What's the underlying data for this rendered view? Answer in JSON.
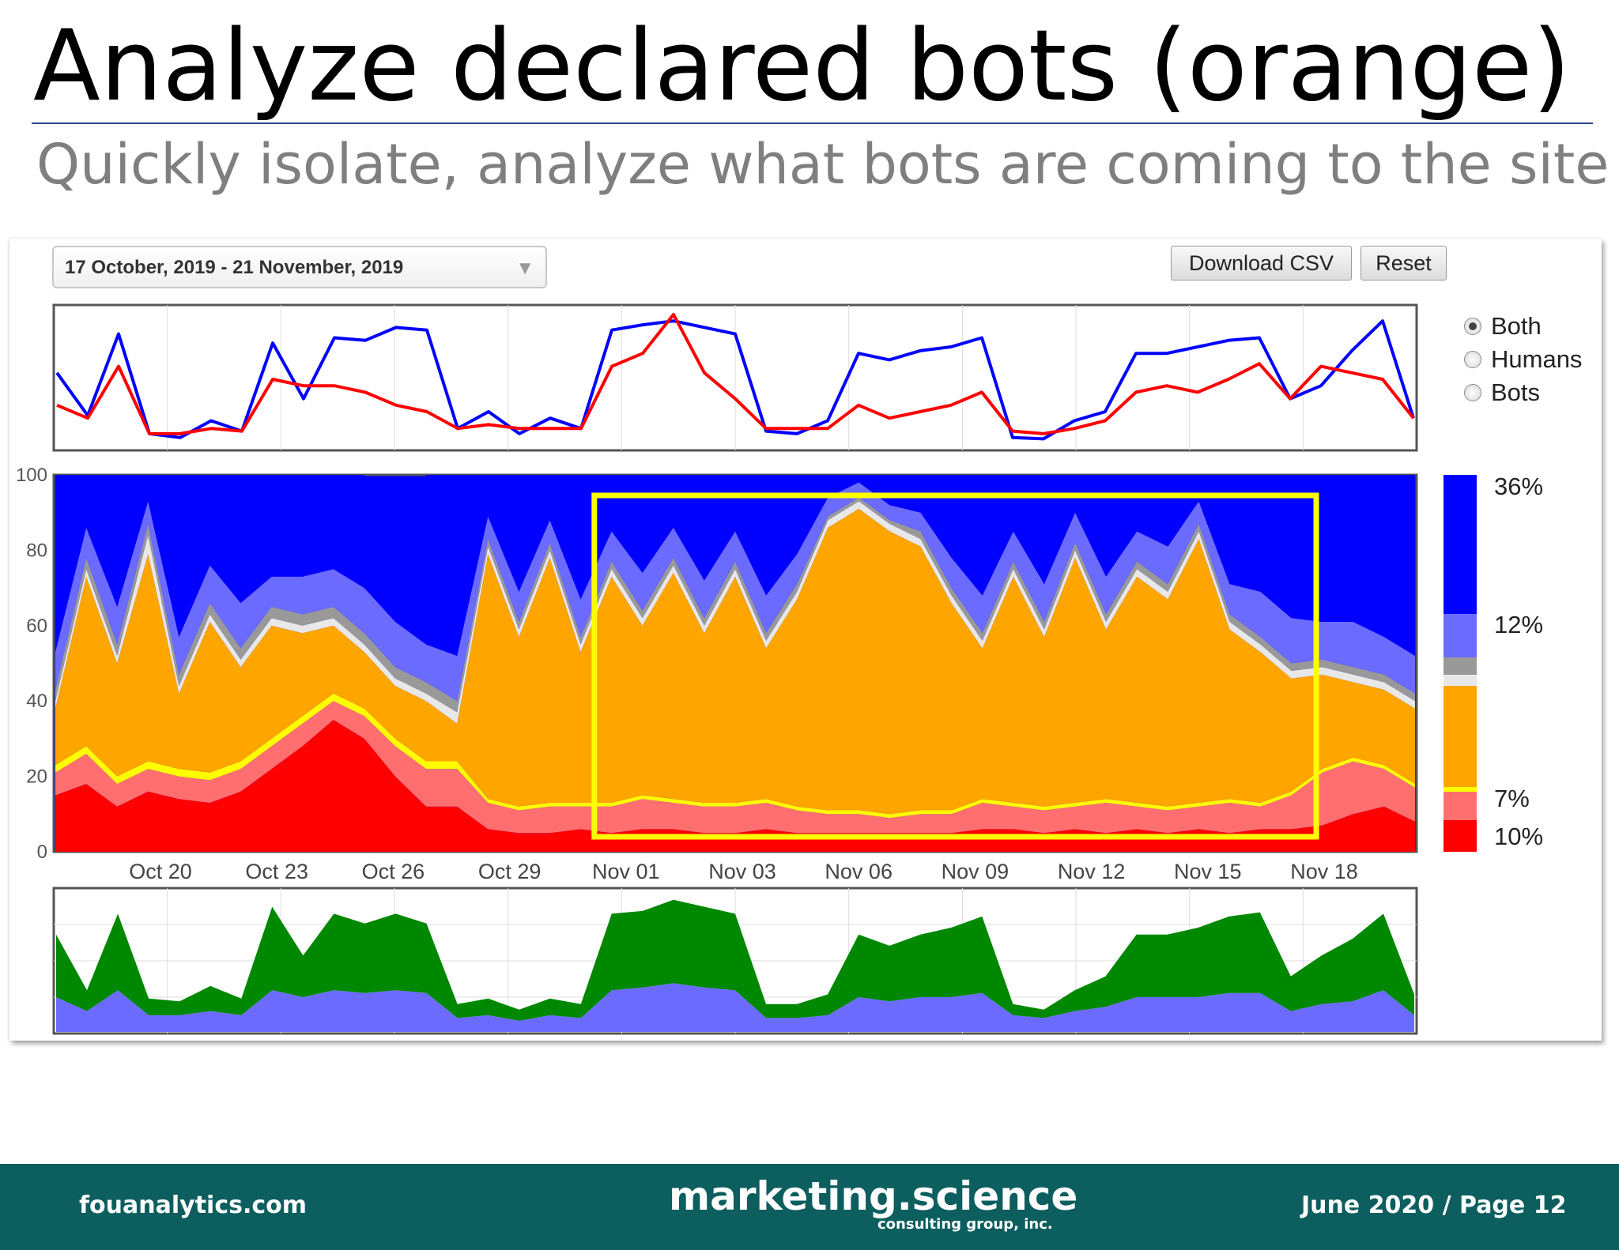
{
  "slide": {
    "title": "Analyze declared bots (orange)",
    "subtitle": "Quickly isolate, analyze what bots are coming to the site"
  },
  "controls": {
    "date_range": "17 October, 2019 - 21 November, 2019",
    "download_label": "Download CSV",
    "reset_label": "Reset",
    "view_options": [
      "Both",
      "Humans",
      "Bots"
    ],
    "selected_view": "Both"
  },
  "chart_data": [
    {
      "type": "line",
      "series": [
        {
          "color": "#0000ff",
          "values": [
            0.55,
            0.22,
            0.85,
            0.08,
            0.05,
            0.18,
            0.1,
            0.78,
            0.35,
            0.82,
            0.8,
            0.9,
            0.88,
            0.12,
            0.25,
            0.08,
            0.2,
            0.12,
            0.88,
            0.92,
            0.95,
            0.9,
            0.85,
            0.1,
            0.08,
            0.18,
            0.7,
            0.65,
            0.72,
            0.75,
            0.82,
            0.05,
            0.04,
            0.18,
            0.25,
            0.7,
            0.7,
            0.75,
            0.8,
            0.82,
            0.35,
            0.45,
            0.72,
            0.95,
            0.2
          ]
        },
        {
          "color": "#ff0000",
          "values": [
            0.3,
            0.2,
            0.6,
            0.08,
            0.08,
            0.12,
            0.1,
            0.5,
            0.45,
            0.45,
            0.4,
            0.3,
            0.25,
            0.12,
            0.15,
            0.12,
            0.12,
            0.12,
            0.6,
            0.7,
            1.0,
            0.55,
            0.35,
            0.12,
            0.12,
            0.12,
            0.3,
            0.2,
            0.25,
            0.3,
            0.4,
            0.1,
            0.08,
            0.12,
            0.18,
            0.4,
            0.45,
            0.4,
            0.5,
            0.62,
            0.35,
            0.6,
            0.55,
            0.5,
            0.2
          ]
        }
      ]
    },
    {
      "type": "area",
      "stacked": true,
      "ylim": [
        0,
        100
      ],
      "yticks": [
        0,
        20,
        40,
        60,
        80,
        100
      ],
      "x_tick_labels": [
        "Oct 20",
        "Oct 23",
        "Oct 26",
        "Oct 29",
        "Nov 01",
        "Nov 03",
        "Nov 06",
        "Nov 09",
        "Nov 12",
        "Nov 15",
        "Nov 18"
      ],
      "series": [
        {
          "color": "#ff0000",
          "values": [
            15,
            18,
            12,
            16,
            14,
            13,
            16,
            22,
            28,
            35,
            30,
            20,
            12,
            12,
            6,
            5,
            5,
            6,
            5,
            6,
            6,
            5,
            5,
            6,
            5,
            5,
            5,
            5,
            5,
            5,
            6,
            6,
            5,
            6,
            5,
            6,
            5,
            6,
            5,
            6,
            6,
            7,
            10,
            12,
            8
          ]
        },
        {
          "color": "#ff6f6f",
          "values": [
            6,
            8,
            6,
            6,
            6,
            6,
            6,
            6,
            6,
            5,
            6,
            8,
            10,
            10,
            7,
            6,
            7,
            6,
            7,
            8,
            7,
            7,
            7,
            7,
            6,
            5,
            5,
            4,
            5,
            5,
            7,
            6,
            6,
            6,
            8,
            6,
            6,
            6,
            8,
            6,
            9,
            14,
            14,
            10,
            9
          ]
        },
        {
          "color": "#ffff00",
          "values": [
            2,
            2,
            2,
            2,
            2,
            2,
            2,
            2,
            2,
            2,
            2,
            2,
            2,
            2,
            1,
            1,
            1,
            1,
            1,
            1,
            1,
            1,
            1,
            1,
            1,
            1,
            1,
            1,
            1,
            1,
            1,
            1,
            1,
            1,
            1,
            1,
            1,
            1,
            1,
            1,
            1,
            1,
            1,
            1,
            1
          ]
        },
        {
          "color": "#ffa500",
          "values": [
            15,
            45,
            30,
            55,
            20,
            40,
            25,
            30,
            22,
            18,
            15,
            14,
            16,
            10,
            65,
            45,
            65,
            40,
            60,
            45,
            60,
            45,
            60,
            40,
            55,
            75,
            80,
            75,
            70,
            55,
            40,
            60,
            45,
            65,
            45,
            60,
            55,
            70,
            45,
            40,
            30,
            25,
            20,
            20,
            20
          ]
        },
        {
          "color": "#e8e8e8",
          "values": [
            2,
            2,
            2,
            5,
            2,
            2,
            2,
            2,
            2,
            2,
            2,
            2,
            2,
            3,
            2,
            2,
            2,
            2,
            2,
            2,
            2,
            2,
            2,
            2,
            2,
            2,
            2,
            2,
            2,
            2,
            2,
            2,
            2,
            2,
            2,
            2,
            2,
            2,
            2,
            2,
            2,
            2,
            2,
            2,
            2
          ]
        },
        {
          "color": "#999999",
          "values": [
            3,
            3,
            3,
            3,
            3,
            3,
            3,
            3,
            3,
            3,
            3,
            3,
            3,
            3,
            2,
            2,
            2,
            2,
            2,
            2,
            2,
            2,
            2,
            2,
            2,
            1,
            1,
            1,
            2,
            2,
            2,
            2,
            2,
            2,
            2,
            2,
            2,
            2,
            2,
            2,
            2,
            2,
            2,
            2,
            2
          ]
        },
        {
          "color": "#6b6bff",
          "values": [
            10,
            8,
            10,
            6,
            10,
            10,
            12,
            8,
            10,
            10,
            12,
            12,
            10,
            12,
            6,
            8,
            6,
            10,
            8,
            10,
            8,
            10,
            8,
            10,
            8,
            5,
            4,
            4,
            5,
            8,
            10,
            8,
            10,
            8,
            10,
            8,
            10,
            6,
            8,
            12,
            12,
            10,
            12,
            10,
            10
          ]
        },
        {
          "color": "#0000ff",
          "values": [
            47,
            14,
            35,
            7,
            43,
            24,
            34,
            27,
            27,
            25,
            30,
            29,
            45,
            48,
            11,
            31,
            12,
            33,
            15,
            26,
            14,
            28,
            17,
            32,
            21,
            6,
            2,
            8,
            10,
            25,
            32,
            15,
            29,
            10,
            27,
            15,
            19,
            7,
            29,
            32,
            38,
            39,
            39,
            43,
            48
          ]
        }
      ],
      "highlight_box": {
        "color": "#ffff00",
        "from": "Nov 01",
        "to": "Nov 18"
      }
    },
    {
      "type": "area",
      "stacked": true,
      "series": [
        {
          "color": "#6b6bff",
          "values": [
            0.25,
            0.15,
            0.3,
            0.12,
            0.12,
            0.15,
            0.12,
            0.3,
            0.25,
            0.3,
            0.28,
            0.3,
            0.28,
            0.1,
            0.12,
            0.08,
            0.12,
            0.1,
            0.3,
            0.32,
            0.35,
            0.32,
            0.3,
            0.1,
            0.1,
            0.12,
            0.25,
            0.22,
            0.25,
            0.25,
            0.28,
            0.12,
            0.1,
            0.15,
            0.18,
            0.25,
            0.25,
            0.25,
            0.28,
            0.28,
            0.15,
            0.2,
            0.22,
            0.3,
            0.12
          ]
        },
        {
          "color": "#008800",
          "values": [
            0.45,
            0.15,
            0.55,
            0.12,
            0.1,
            0.18,
            0.12,
            0.6,
            0.3,
            0.55,
            0.5,
            0.55,
            0.5,
            0.1,
            0.12,
            0.08,
            0.12,
            0.1,
            0.55,
            0.55,
            0.6,
            0.58,
            0.55,
            0.1,
            0.1,
            0.15,
            0.45,
            0.4,
            0.45,
            0.5,
            0.55,
            0.08,
            0.06,
            0.15,
            0.22,
            0.45,
            0.45,
            0.5,
            0.55,
            0.58,
            0.25,
            0.35,
            0.45,
            0.55,
            0.15
          ]
        }
      ]
    }
  ],
  "legend": {
    "colors": [
      "#0000ff",
      "#6b6bff",
      "#999999",
      "#e8e8e8",
      "#ffa500",
      "#ffff00",
      "#ff6f6f",
      "#ff0000"
    ],
    "labels": [
      "36%",
      "12%",
      "7%",
      "10%"
    ]
  },
  "footer": {
    "left": "fouanalytics.com",
    "logo": "marketing.science",
    "logo_sub": "consulting group, inc.",
    "right": "June 2020 / Page 12"
  }
}
